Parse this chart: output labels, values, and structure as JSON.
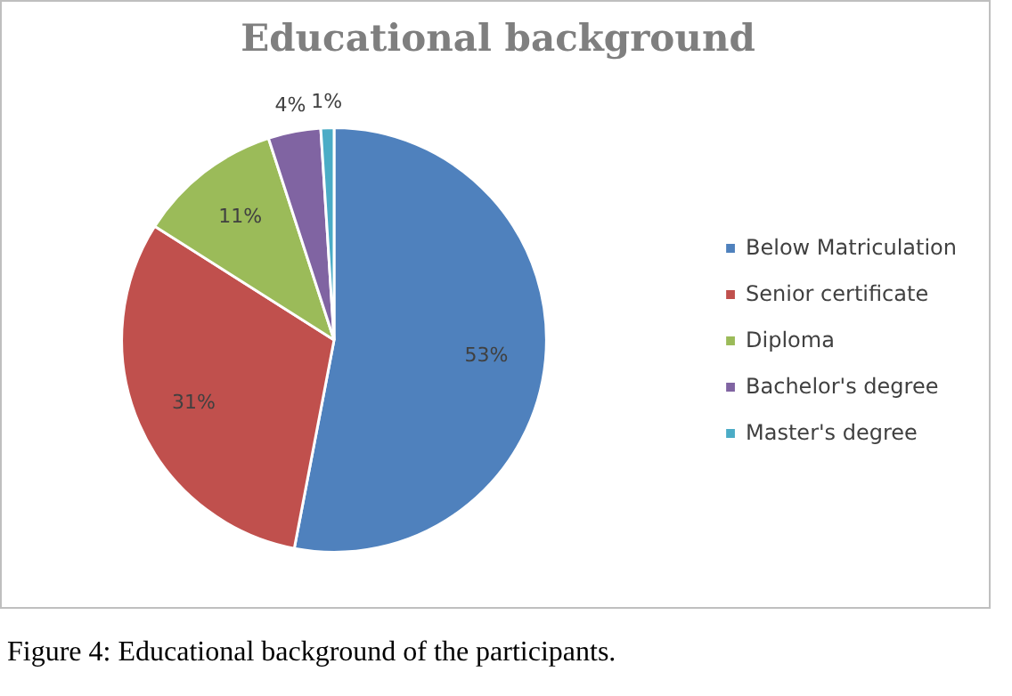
{
  "chart_data": {
    "type": "pie",
    "title": "Educational background",
    "categories": [
      "Below Matriculation",
      "Senior certificate",
      "Diploma",
      "Bachelor's degree",
      "Master's degree"
    ],
    "values": [
      53,
      31,
      11,
      4,
      1
    ],
    "colors": [
      "#4f81bd",
      "#c0504d",
      "#9bbb59",
      "#8064a2",
      "#4bacc6"
    ],
    "value_labels": [
      "53%",
      "31%",
      "11%",
      "4%",
      "1%"
    ],
    "legend": "right",
    "annotations": [
      "Figure 4: Educational background of the participants."
    ]
  }
}
